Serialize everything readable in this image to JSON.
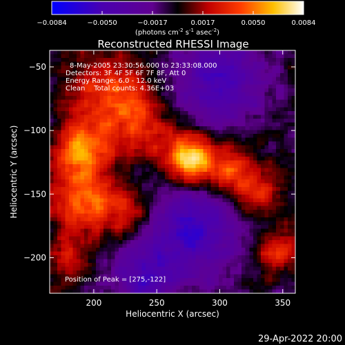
{
  "chart_data": {
    "type": "heatmap",
    "title": "Reconstructed RHESSI Image",
    "xlabel": "Heliocentric X (arcsec)",
    "ylabel": "Heliocentric Y (arcsec)",
    "xlim": [
      165,
      360
    ],
    "ylim": [
      -228,
      -37
    ],
    "x_ticks": [
      200,
      250,
      300,
      350
    ],
    "y_ticks": [
      -50,
      -100,
      -150,
      -200
    ],
    "colorbar": {
      "min": -0.0084,
      "max": 0.0084,
      "ticks": [
        "-0.0084",
        "-0.0050",
        "-0.0017",
        "0.0017",
        "0.0050",
        "0.0084"
      ],
      "unit_prefix": "(photons cm",
      "unit_exp1": "-2",
      "unit_mid1": " s",
      "unit_exp2": "-1",
      "unit_mid2": " asec",
      "unit_exp3": "-2",
      "unit_suffix": ")"
    },
    "annotations": {
      "time": "8-May-2005 23:30:56.000 to 23:33:08.000",
      "detectors": "Detectors: 3F 4F 5F 6F 7F 8F, Att 0",
      "energy": "Energy Range: 6.0 - 12.0 keV",
      "clean": "Clean    Total counts: 4.36E+03",
      "peak": "Position of Peak = [275,-122]"
    },
    "peak": [
      275,
      -122
    ],
    "sources": [
      {
        "x": 275,
        "y": -122,
        "sigma": 13,
        "amp": 1.0
      },
      {
        "x": 305,
        "y": -132,
        "sigma": 15,
        "amp": 0.55
      },
      {
        "x": 190,
        "y": -115,
        "sigma": 14,
        "amp": 0.75
      },
      {
        "x": 235,
        "y": -95,
        "sigma": 18,
        "amp": 0.45
      },
      {
        "x": 210,
        "y": -70,
        "sigma": 20,
        "amp": 0.5
      },
      {
        "x": 190,
        "y": -155,
        "sigma": 18,
        "amp": 0.55
      },
      {
        "x": 225,
        "y": -165,
        "sigma": 16,
        "amp": 0.35
      },
      {
        "x": 330,
        "y": -150,
        "sigma": 14,
        "amp": 0.35
      },
      {
        "x": 345,
        "y": -195,
        "sigma": 12,
        "amp": 0.4
      },
      {
        "x": 180,
        "y": -200,
        "sigma": 14,
        "amp": 0.3
      }
    ],
    "dims": [
      {
        "x": 300,
        "y": -60,
        "sigma": 25,
        "amp": 0.6
      },
      {
        "x": 280,
        "y": -175,
        "sigma": 25,
        "amp": 0.65
      },
      {
        "x": 240,
        "y": -215,
        "sigma": 22,
        "amp": 0.5
      }
    ]
  },
  "footer": {
    "timestamp": "29-Apr-2022 20:00"
  }
}
